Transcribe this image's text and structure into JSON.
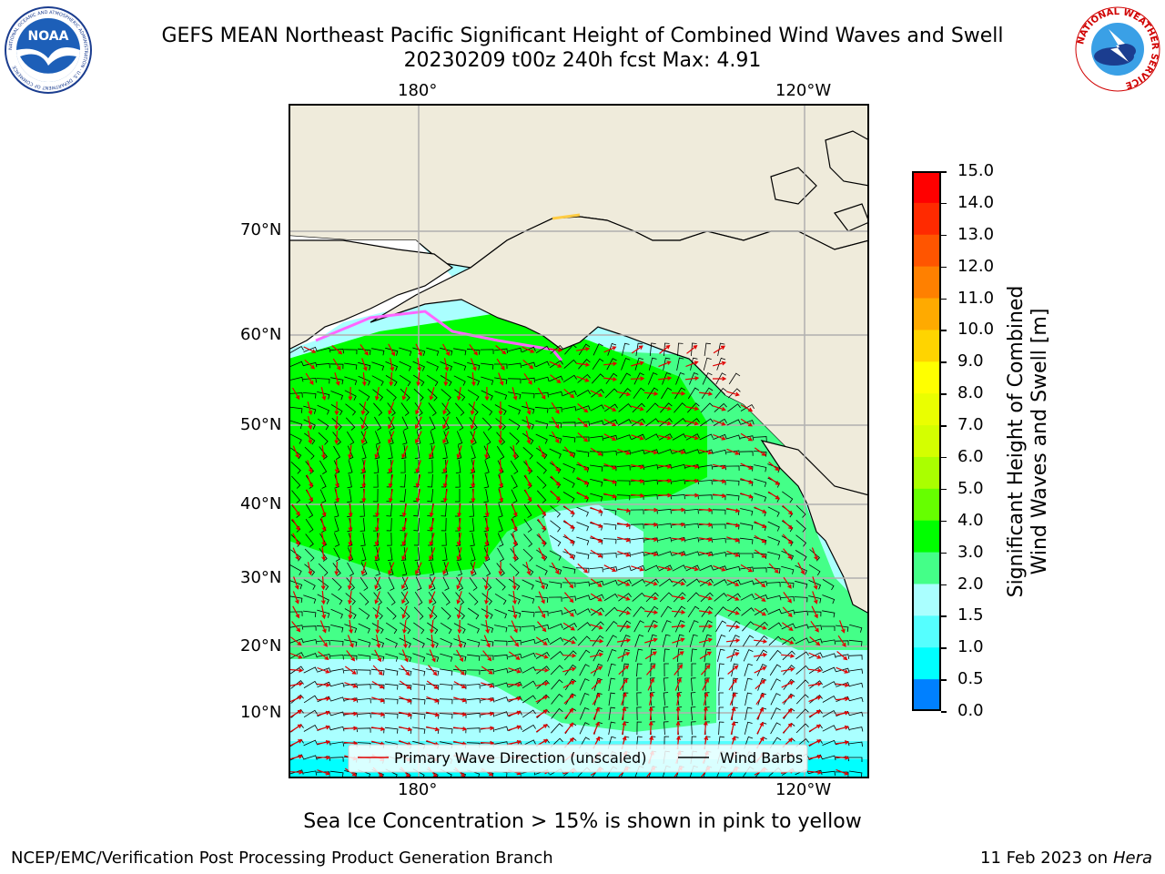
{
  "header": {
    "title_line1": "GEFS MEAN Northeast Pacific Significant Height of Combined Wind Waves and Swell",
    "title_line2": "20230209 t00z 240h fcst   Max: 4.91"
  },
  "logos": {
    "noaa_text": "NOAA",
    "noaa_ring_text": "NATIONAL OCEANIC AND ATMOSPHERIC ADMINISTRATION · U.S. DEPARTMENT OF COMMERCE",
    "nws_ring_text": "NATIONAL WEATHER SERVICE"
  },
  "map": {
    "lon_labels_top": [
      "180°",
      "120°W"
    ],
    "lon_labels_bottom": [
      "180°",
      "120°W"
    ],
    "lat_labels": [
      "70°N",
      "60°N",
      "50°N",
      "40°N",
      "30°N",
      "20°N",
      "10°N"
    ],
    "legend": {
      "wave_direction": "Primary Wave Direction (unscaled)",
      "wind_barbs": "Wind Barbs",
      "wave_color": "#e00000",
      "barb_color": "#000000"
    },
    "land_color": "#efebdb",
    "max_value": 4.91,
    "units": "m"
  },
  "colorbar": {
    "label_line1": "Significant Height of Combined",
    "label_line2": "Wind Waves and Swell [m]",
    "ticks": [
      "15.0",
      "14.0",
      "13.0",
      "12.0",
      "11.0",
      "10.0",
      "9.0",
      "8.0",
      "7.0",
      "6.0",
      "5.0",
      "4.0",
      "3.0",
      "2.0",
      "1.5",
      "1.0",
      "0.5",
      "0.0"
    ],
    "colors_top_to_bottom": [
      "#ff0000",
      "#ff2a00",
      "#ff5500",
      "#ff8000",
      "#ffaa00",
      "#ffd400",
      "#ffff00",
      "#eaff00",
      "#d4ff00",
      "#aaff00",
      "#66ff00",
      "#00ff00",
      "#44ff88",
      "#aaffff",
      "#55ffff",
      "#00ffff",
      "#0080ff",
      "#0000ff"
    ]
  },
  "footer": {
    "sea_ice_note": "Sea Ice Concentration > 15% is shown in pink to yellow",
    "credit_left": "NCEP/EMC/Verification Post Processing Product Generation Branch",
    "date": "11 Feb 2023 on",
    "machine": "Hera"
  }
}
